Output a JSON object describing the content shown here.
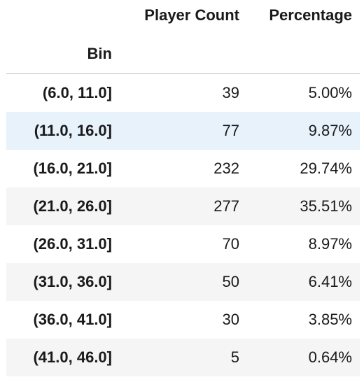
{
  "columns": {
    "player_count": "Player Count",
    "percentage": "Percentage"
  },
  "index_name": "Bin",
  "rows": [
    {
      "bin": "(6.0, 11.0]",
      "count": "39",
      "pct": "5.00%"
    },
    {
      "bin": "(11.0, 16.0]",
      "count": "77",
      "pct": "9.87%"
    },
    {
      "bin": "(16.0, 21.0]",
      "count": "232",
      "pct": "29.74%"
    },
    {
      "bin": "(21.0, 26.0]",
      "count": "277",
      "pct": "35.51%"
    },
    {
      "bin": "(26.0, 31.0]",
      "count": "70",
      "pct": "8.97%"
    },
    {
      "bin": "(31.0, 36.0]",
      "count": "50",
      "pct": "6.41%"
    },
    {
      "bin": "(36.0, 41.0]",
      "count": "30",
      "pct": "3.85%"
    },
    {
      "bin": "(41.0, 46.0]",
      "count": "5",
      "pct": "0.64%"
    }
  ]
}
